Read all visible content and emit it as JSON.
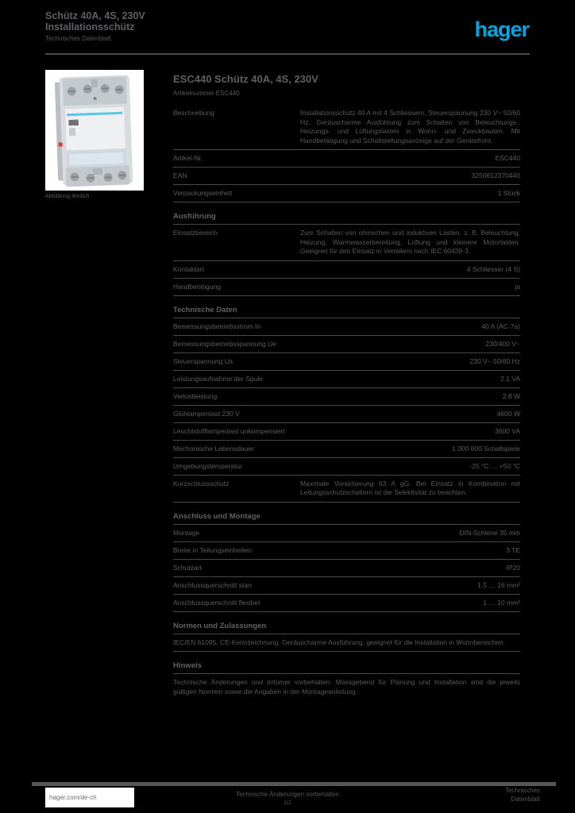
{
  "colors": {
    "background": "#000000",
    "brand_blue": "#00a5e0",
    "text_gray": "#595b5e",
    "rule_gray": "#45474a",
    "footer_box": "#ffffff"
  },
  "header": {
    "title_line1": "Schütz 40A, 4S, 230V",
    "title_line2": "Installationsschütz",
    "subtitle": "Technisches Datenblatt",
    "logo_text": "hager"
  },
  "product_image": {
    "caption": "Abbildung ähnlich"
  },
  "content": {
    "title": "ESC440 Schütz 40A, 4S, 230V",
    "subtitle": "Artikelnummer ESC440",
    "sections": [
      {
        "rows": [
          {
            "type": "long",
            "label": "Beschreibung",
            "text": "Installationsschütz 40 A mit 4 Schliessern, Steuerspannung 230 V~ 50/60 Hz. Geräuscharme Ausführung zum Schalten von Beleuchtungs-, Heizungs- und Lüftungslasten in Wohn- und Zweckbauten. Mit Handbetätigung und Schaltstellungsanzeige auf der Gerätefront."
          }
        ]
      },
      {
        "rows": [
          {
            "type": "short",
            "label": "Artikel-Nr.",
            "value": "ESC440"
          },
          {
            "type": "short",
            "label": "EAN",
            "value": "3250612370440"
          },
          {
            "type": "short",
            "label": "Verpackungseinheit",
            "value": "1 Stück"
          }
        ]
      },
      {
        "heading": "Ausführung",
        "rows": [
          {
            "type": "long",
            "label": "Einsatzbereich",
            "text": "Zum Schalten von ohmschen und induktiven Lasten, z. B. Beleuchtung, Heizung, Warmwasserbereitung, Lüftung und kleinere Motorlasten. Geeignet für den Einsatz in Verteilern nach IEC 60439-3."
          },
          {
            "type": "short",
            "label": "Kontaktart",
            "value": "4 Schliesser (4 S)"
          },
          {
            "type": "short",
            "label": "Handbetätigung",
            "value": "ja"
          }
        ]
      },
      {
        "heading": "Technische Daten",
        "rows": [
          {
            "type": "short",
            "label": "Bemessungsbetriebsstrom In",
            "value": "40 A (AC-7a)"
          },
          {
            "type": "short",
            "label": "Bemessungsbetriebsspannung Ue",
            "value": "230/400 V~"
          },
          {
            "type": "short",
            "label": "Steuerspannung Us",
            "value": "230 V~ 50/60 Hz"
          },
          {
            "type": "short",
            "label": "Leistungsaufnahme der Spule",
            "value": "2.1 VA"
          },
          {
            "type": "short",
            "label": "Verlustleistung",
            "value": "2.8 W"
          },
          {
            "type": "short",
            "label": "Glühlampenlast 230 V",
            "value": "4600 W"
          },
          {
            "type": "short",
            "label": "Leuchtstofflampenlast unkompensiert",
            "value": "3600 VA"
          },
          {
            "type": "short",
            "label": "Mechanische Lebensdauer",
            "value": "1 000 000 Schaltspiele"
          },
          {
            "type": "short",
            "label": "Umgebungstemperatur",
            "value": "-25 °C … +50 °C"
          },
          {
            "type": "long",
            "label": "Kurzschlussschutz",
            "text": "Maximale Vorsicherung 63 A gG. Bei Einsatz in Kombination mit Leitungsschutzschaltern ist die Selektivität zu beachten."
          }
        ]
      },
      {
        "heading": "Anschluss und Montage",
        "rows": [
          {
            "type": "short",
            "label": "Montage",
            "value": "DIN-Schiene 35 mm"
          },
          {
            "type": "short",
            "label": "Breite in Teilungseinheiten",
            "value": "3 TE"
          },
          {
            "type": "short",
            "label": "Schutzart",
            "value": "IP20"
          },
          {
            "type": "short",
            "label": "Anschlussquerschnitt starr",
            "value": "1.5 … 16 mm²"
          },
          {
            "type": "short",
            "label": "Anschlussquerschnitt flexibel",
            "value": "1 … 10 mm²"
          }
        ]
      },
      {
        "heading": "Normen und Zulassungen",
        "rows": [
          {
            "type": "text",
            "text": "IEC/EN 61095, CE-Kennzeichnung. Geräuscharme Ausführung, geeignet für die Installation in Wohnbereichen."
          }
        ]
      },
      {
        "heading": "Hinweis",
        "rows": [
          {
            "type": "text",
            "text": "Technische Änderungen und Irrtümer vorbehalten. Massgebend für Planung und Installation sind die jeweils gültigen Normen sowie die Angaben in der Montageanleitung."
          }
        ]
      }
    ]
  },
  "footer": {
    "link": "hager.com/de-ch",
    "center_line1": "Technische Änderungen vorbehalten",
    "center_line2": "1/1",
    "right_line1": "Technisches",
    "right_line2": "Datenblatt"
  }
}
